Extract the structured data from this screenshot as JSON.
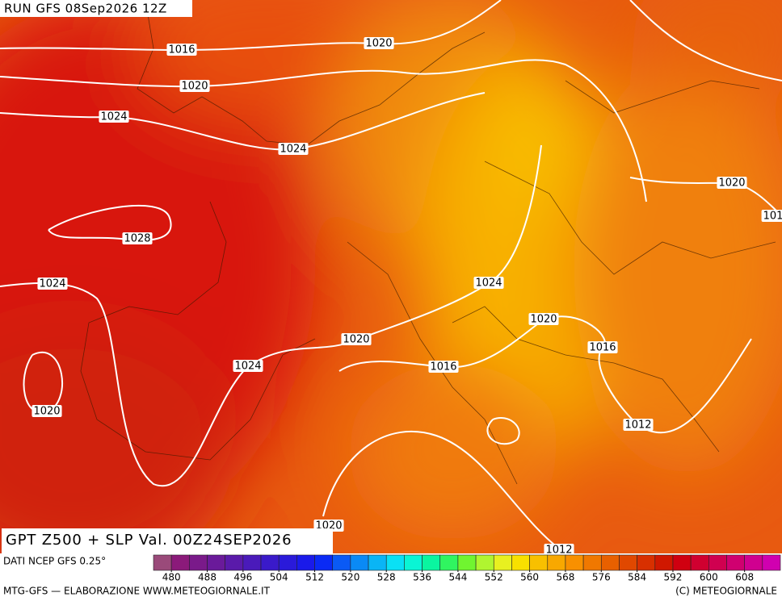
{
  "header": {
    "run": "RUN GFS 08Sep2026 12Z"
  },
  "map": {
    "isobar_labels": [
      "1020",
      "1016",
      "1020",
      "1024",
      "1024",
      "1020",
      "101",
      "1028",
      "1024",
      "1024",
      "1020",
      "1020",
      "1016",
      "1024",
      "1016",
      "1020",
      "1012",
      "1020",
      "1012"
    ]
  },
  "footer": {
    "title": "GPT Z500 + SLP Val. 00Z24SEP2026",
    "source": "DATI NCEP GFS 0.25°",
    "credits": "MTG-GFS — ELABORAZIONE WWW.METEOGIORNALE.IT",
    "copyright": "(C) METEOGIORNALE"
  },
  "colorbar": {
    "lim": [
      476,
      616
    ],
    "ticks": [
      480,
      488,
      496,
      504,
      512,
      520,
      528,
      536,
      544,
      552,
      560,
      568,
      576,
      584,
      592,
      600,
      608
    ],
    "colors": [
      "#9a4a7a",
      "#8b1a7a",
      "#7a1a8a",
      "#6a1a9a",
      "#5a1aaa",
      "#4a1aba",
      "#3a1aca",
      "#2a1ada",
      "#1a1aea",
      "#0a2af5",
      "#0a5af5",
      "#0a8af5",
      "#0ab5f5",
      "#0ae0f5",
      "#0af5d5",
      "#0af5a0",
      "#30f560",
      "#70f530",
      "#b0f530",
      "#e8f020",
      "#f8e000",
      "#f8c000",
      "#f8a800",
      "#f89000",
      "#f07800",
      "#e86000",
      "#e04800",
      "#d83000",
      "#d01800",
      "#d00010",
      "#d00030",
      "#d00050",
      "#d00070",
      "#d00090",
      "#d000b0"
    ]
  }
}
